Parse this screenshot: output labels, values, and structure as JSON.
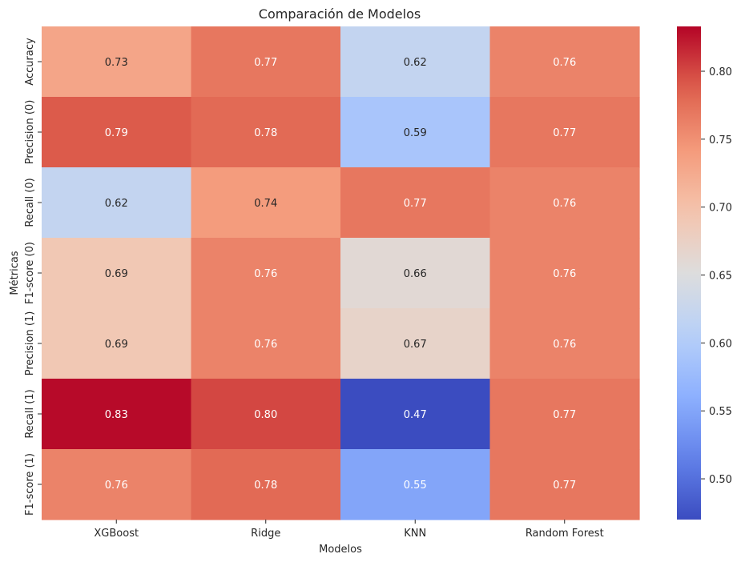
{
  "chart_data": {
    "type": "heatmap",
    "title": "Comparación de Modelos",
    "xlabel": "Modelos",
    "ylabel": "Métricas",
    "columns": [
      "XGBoost",
      "Ridge",
      "KNN",
      "Random Forest"
    ],
    "rows": [
      "Accuracy",
      "Precision (0)",
      "Recall (0)",
      "F1-score (0)",
      "Precision (1)",
      "Recall (1)",
      "F1-score (1)"
    ],
    "values": [
      [
        0.73,
        0.77,
        0.62,
        0.76
      ],
      [
        0.79,
        0.78,
        0.59,
        0.77
      ],
      [
        0.62,
        0.74,
        0.77,
        0.76
      ],
      [
        0.69,
        0.76,
        0.66,
        0.76
      ],
      [
        0.69,
        0.76,
        0.67,
        0.76
      ],
      [
        0.83,
        0.8,
        0.47,
        0.77
      ],
      [
        0.76,
        0.78,
        0.55,
        0.77
      ]
    ],
    "colormap": "coolwarm",
    "colorbar": {
      "min": 0.47,
      "max": 0.833,
      "ticks": [
        "0.50",
        "0.55",
        "0.60",
        "0.65",
        "0.70",
        "0.75",
        "0.80"
      ]
    },
    "annotations": true
  }
}
